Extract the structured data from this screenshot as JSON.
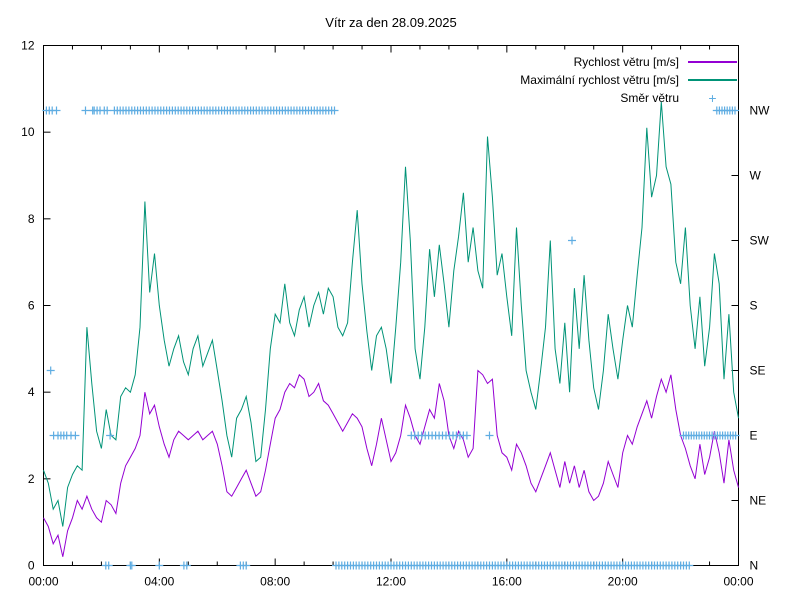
{
  "title": "Vítr za den 28.09.2025",
  "legend": [
    {
      "label": "Rychlost větru [m/s]",
      "type": "line",
      "color": "#9400d3"
    },
    {
      "label": "Maximální rychlost větru [m/s]",
      "type": "line",
      "color": "#009377"
    },
    {
      "label": "Směr větru",
      "type": "marker",
      "color": "#5fade2",
      "glyph": "+"
    }
  ],
  "chart_data": {
    "type": "line",
    "title": "Vítr za den 28.09.2025",
    "xlabel": "",
    "ylabel": "",
    "xlim_hours": [
      0,
      24
    ],
    "ylim": [
      0,
      12
    ],
    "grid": false,
    "x_major_hours": [
      0,
      4,
      8,
      12,
      16,
      20,
      24
    ],
    "x_tick_labels": [
      "00:00",
      "04:00",
      "08:00",
      "12:00",
      "16:00",
      "20:00",
      "00:00"
    ],
    "x_minor_step_hours": 1,
    "y_ticks": [
      0,
      2,
      4,
      6,
      8,
      10,
      12
    ],
    "direction_axis": {
      "labels": [
        "N",
        "NE",
        "E",
        "SE",
        "S",
        "SW",
        "W",
        "NW"
      ],
      "values": [
        0,
        1.5,
        3,
        4.5,
        6,
        7.5,
        9,
        10.5
      ]
    },
    "sample_step_hours": 0.16667,
    "series": [
      {
        "name": "Rychlost větru [m/s]",
        "color": "#9400d3",
        "values": [
          1.1,
          0.9,
          0.5,
          0.7,
          0.2,
          0.8,
          1.1,
          1.5,
          1.3,
          1.6,
          1.3,
          1.1,
          1.0,
          1.5,
          1.4,
          1.2,
          1.9,
          2.3,
          2.5,
          2.7,
          3.0,
          4.0,
          3.5,
          3.7,
          3.2,
          2.8,
          2.5,
          2.9,
          3.1,
          3.0,
          2.9,
          3.0,
          3.1,
          2.9,
          3.0,
          3.1,
          2.8,
          2.3,
          1.7,
          1.6,
          1.8,
          2.0,
          2.2,
          1.9,
          1.6,
          1.7,
          2.2,
          2.8,
          3.4,
          3.6,
          4.0,
          4.2,
          4.1,
          4.4,
          4.3,
          3.9,
          4.0,
          4.2,
          3.8,
          3.7,
          3.5,
          3.3,
          3.1,
          3.3,
          3.5,
          3.4,
          3.2,
          2.7,
          2.3,
          2.8,
          3.4,
          2.9,
          2.4,
          2.6,
          3.0,
          3.7,
          3.4,
          3.0,
          2.8,
          3.2,
          3.6,
          3.4,
          4.2,
          3.8,
          3.0,
          2.7,
          3.1,
          2.9,
          2.5,
          2.7,
          4.5,
          4.4,
          4.2,
          4.3,
          3.0,
          2.6,
          2.5,
          2.2,
          2.8,
          2.6,
          2.3,
          1.9,
          1.7,
          2.0,
          2.3,
          2.6,
          2.2,
          1.8,
          2.4,
          1.9,
          2.3,
          1.8,
          2.2,
          1.7,
          1.5,
          1.6,
          1.9,
          2.4,
          2.1,
          1.8,
          2.6,
          3.0,
          2.8,
          3.2,
          3.5,
          3.8,
          3.4,
          3.9,
          4.3,
          4.0,
          4.4,
          3.6,
          3.0,
          2.7,
          2.3,
          2.0,
          2.8,
          2.1,
          2.5,
          3.1,
          2.6,
          1.9,
          2.9,
          2.2,
          1.8
        ]
      },
      {
        "name": "Maximální rychlost větru [m/s]",
        "color": "#009377",
        "values": [
          2.2,
          1.9,
          1.3,
          1.5,
          0.9,
          1.8,
          2.1,
          2.3,
          2.2,
          5.5,
          4.2,
          3.1,
          2.7,
          3.6,
          3.0,
          2.9,
          3.9,
          4.1,
          4.0,
          4.4,
          5.5,
          8.4,
          6.3,
          7.2,
          6.0,
          5.2,
          4.6,
          5.0,
          5.3,
          4.7,
          4.4,
          5.0,
          5.3,
          4.6,
          4.9,
          5.2,
          4.5,
          3.8,
          3.0,
          2.5,
          3.4,
          3.6,
          3.9,
          3.3,
          2.4,
          2.5,
          3.6,
          5.0,
          5.8,
          5.6,
          6.5,
          5.6,
          5.3,
          5.9,
          6.2,
          5.5,
          6.0,
          6.3,
          5.8,
          6.4,
          6.2,
          5.5,
          5.3,
          5.6,
          7.0,
          8.2,
          6.5,
          5.4,
          4.5,
          5.3,
          5.5,
          5.0,
          4.2,
          5.5,
          7.0,
          9.2,
          7.5,
          5.0,
          4.3,
          5.5,
          7.3,
          6.2,
          7.4,
          6.5,
          5.5,
          6.8,
          7.6,
          8.6,
          7.0,
          7.8,
          6.8,
          6.4,
          9.9,
          8.5,
          6.7,
          7.2,
          6.2,
          5.3,
          7.8,
          6.0,
          4.5,
          4.0,
          3.6,
          4.5,
          5.5,
          7.5,
          5.0,
          4.2,
          5.6,
          4.0,
          6.4,
          5.0,
          6.7,
          5.2,
          4.1,
          3.6,
          4.5,
          5.8,
          5.0,
          4.3,
          5.2,
          6.0,
          5.5,
          6.7,
          7.8,
          10.1,
          8.5,
          9.0,
          10.7,
          9.2,
          8.8,
          7.0,
          6.5,
          7.8,
          6.0,
          5.0,
          6.2,
          4.6,
          5.5,
          7.2,
          6.5,
          4.3,
          5.8,
          4.0,
          3.4
        ]
      }
    ],
    "direction_markers": {
      "name": "Směr větru",
      "color": "#5fade2",
      "points": [
        {
          "dir": "NW",
          "value": 10.5,
          "t": 0.1
        },
        {
          "dir": "NW",
          "value": 10.5,
          "t": 0.2
        },
        {
          "dir": "NW",
          "value": 10.5,
          "t": 0.3
        },
        {
          "dir": "NW",
          "value": 10.5,
          "t": 0.45
        },
        {
          "dir": "NW",
          "value": 10.5,
          "t": 1.45
        },
        {
          "dir": "NW",
          "value": 10.5,
          "t": 1.7
        },
        {
          "dir": "NW",
          "value": 10.5,
          "t": 1.75
        },
        {
          "dir": "NW",
          "value": 10.5,
          "t": 1.85
        },
        {
          "dir": "NW",
          "value": 10.5,
          "t": 1.95
        },
        {
          "dir": "NW",
          "value": 10.5,
          "t": 2.1
        },
        {
          "dir": "NW",
          "value": 10.5,
          "t": 2.2
        },
        {
          "dir": "SE",
          "value": 4.5,
          "t": 0.25
        },
        {
          "dir": "E",
          "value": 3,
          "t": 0.35
        },
        {
          "dir": "E",
          "value": 3,
          "t": 0.5
        },
        {
          "dir": "E",
          "value": 3,
          "t": 0.6
        },
        {
          "dir": "E",
          "value": 3,
          "t": 0.7
        },
        {
          "dir": "E",
          "value": 3,
          "t": 0.8
        },
        {
          "dir": "E",
          "value": 3,
          "t": 0.95
        },
        {
          "dir": "E",
          "value": 3,
          "t": 1.1
        },
        {
          "dir": "E",
          "value": 3,
          "t": 2.3
        },
        {
          "dir": "E",
          "value": 3,
          "t": 15.4
        },
        {
          "dir": "N",
          "value": 0,
          "t": 2.15
        },
        {
          "dir": "N",
          "value": 0,
          "t": 2.25
        },
        {
          "dir": "N",
          "value": 0,
          "t": 3.0
        },
        {
          "dir": "N",
          "value": 0,
          "t": 3.05
        },
        {
          "dir": "N",
          "value": 0,
          "t": 4.0
        },
        {
          "dir": "N",
          "value": 0,
          "t": 4.85
        },
        {
          "dir": "N",
          "value": 0,
          "t": 4.95
        },
        {
          "dir": "N",
          "value": 0,
          "t": 6.8
        },
        {
          "dir": "N",
          "value": 0,
          "t": 6.9
        },
        {
          "dir": "N",
          "value": 0,
          "t": 7.0
        },
        {
          "dir": "SW",
          "value": 7.5,
          "t": 18.25
        }
      ],
      "bands": [
        {
          "dir": "NW",
          "value": 10.5,
          "from": 2.45,
          "to": 10.05,
          "step": 0.1
        },
        {
          "dir": "N",
          "value": 0,
          "from": 10.1,
          "to": 22.3,
          "step": 0.1
        },
        {
          "dir": "E",
          "value": 3,
          "from": 12.7,
          "to": 14.7,
          "step": 0.12
        },
        {
          "dir": "E",
          "value": 3,
          "from": 22.1,
          "to": 23.95,
          "step": 0.09
        },
        {
          "dir": "NW",
          "value": 10.5,
          "from": 23.25,
          "to": 23.95,
          "step": 0.09
        }
      ]
    }
  }
}
